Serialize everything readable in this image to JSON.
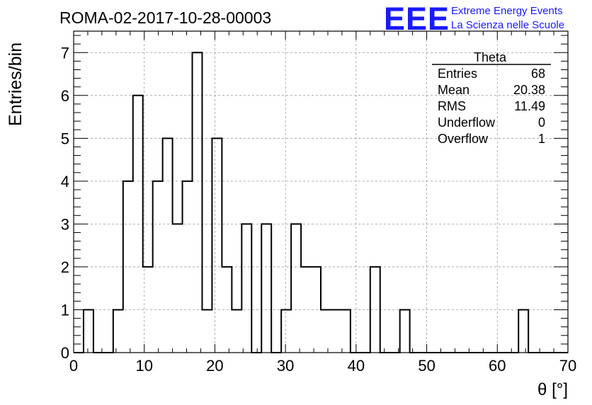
{
  "title": "ROMA-02-2017-10-28-00003",
  "logo": {
    "text": "EEE",
    "line1": "Extreme Energy Events",
    "line2": "La Scienza nelle Scuole",
    "color": "#1a1aff"
  },
  "stats": {
    "name": "Theta",
    "rows": [
      {
        "label": "Entries",
        "value": "68"
      },
      {
        "label": "Mean",
        "value": "20.38"
      },
      {
        "label": "RMS",
        "value": "11.49"
      },
      {
        "label": "Underflow",
        "value": "0"
      },
      {
        "label": "Overflow",
        "value": "1"
      }
    ]
  },
  "chart_data": {
    "type": "bar",
    "histogram": true,
    "xlabel": "θ [°]",
    "ylabel": "Entries/bin",
    "xlim": [
      0,
      70
    ],
    "ylim": [
      0,
      7.5
    ],
    "grid": true,
    "bin_width": 1.4,
    "bin_start": 0,
    "x_ticks": [
      0,
      10,
      20,
      30,
      40,
      50,
      60,
      70
    ],
    "y_ticks": [
      0,
      1,
      2,
      3,
      4,
      5,
      6,
      7
    ],
    "values": [
      0,
      1,
      0,
      0,
      1,
      4,
      6,
      2,
      4,
      5,
      3,
      4,
      7,
      1,
      5,
      2,
      1,
      3,
      0,
      3,
      0,
      1,
      3,
      2,
      2,
      1,
      1,
      1,
      0,
      0,
      2,
      0,
      0,
      1,
      0,
      0,
      0,
      0,
      0,
      0,
      0,
      0,
      0,
      0,
      0,
      1,
      0,
      0,
      0,
      0
    ],
    "line_color": "#000000"
  }
}
